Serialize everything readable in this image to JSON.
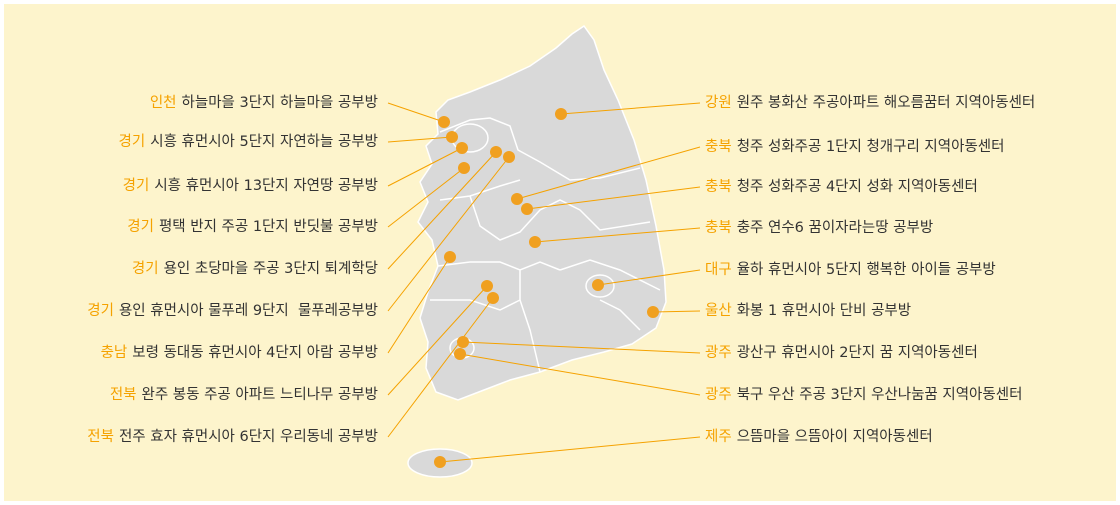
{
  "left_labels": [
    {
      "region": "인천",
      "text": "하늘마을 3단지 하늘마을 공부방"
    },
    {
      "region": "경기",
      "text": "시흥 휴먼시아 5단지 자연하늘 공부방"
    },
    {
      "region": "경기",
      "text": "시흥 휴먼시아 13단지 자연땅 공부방"
    },
    {
      "region": "경기",
      "text": "평택 반지 주공 1단지 반딧불 공부방"
    },
    {
      "region": "경기",
      "text": "용인 초당마을 주공 3단지 퇴계학당"
    },
    {
      "region": "경기",
      "text": "용인 휴먼시아 물푸레 9단지  물푸레공부방"
    },
    {
      "region": "충남",
      "text": "보령 동대동 휴먼시아 4단지 아람 공부방"
    },
    {
      "region": "전북",
      "text": "완주 봉동 주공 아파트 느티나무 공부방"
    },
    {
      "region": "전북",
      "text": "전주 효자 휴먼시아 6단지 우리동네 공부방"
    }
  ],
  "right_labels": [
    {
      "region": "강원",
      "text": "원주 봉화산 주공아파트 해오름꿈터 지역아동센터"
    },
    {
      "region": "충북",
      "text": "청주 성화주공 1단지 청개구리 지역아동센터"
    },
    {
      "region": "충북",
      "text": "청주 성화주공 4단지 성화 지역아동센터"
    },
    {
      "region": "충북",
      "text": "충주 연수6 꿈이자라는땅 공부방"
    },
    {
      "region": "대구",
      "text": "율하 휴먼시아 5단지 행복한 아이들 공부방"
    },
    {
      "region": "울산",
      "text": "화봉 1 휴먼시아 단비 공부방"
    },
    {
      "region": "광주",
      "text": "광산구 휴먼시아 2단지 꿈 지역아동센터"
    },
    {
      "region": "광주",
      "text": "북구 우산 주공 3단지 우산나눔꿈 지역아동센터"
    },
    {
      "region": "제주",
      "text": "으뜸마을 으뜸아이 지역아동센터"
    }
  ]
}
